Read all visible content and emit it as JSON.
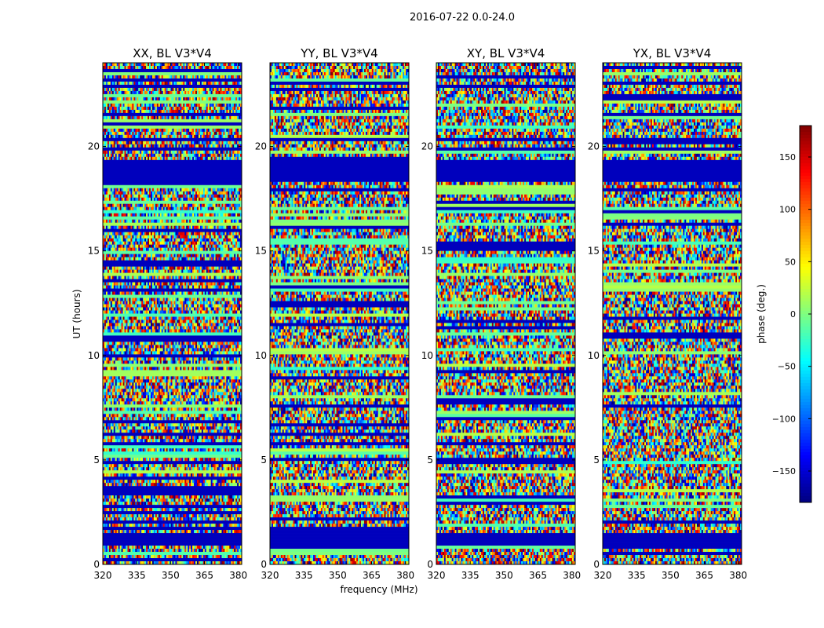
{
  "chart_data": {
    "type": "heatmap",
    "suptitle": "2016-07-22 0.0-24.0",
    "panels": [
      {
        "title": "XX, BL V3*V4",
        "pol": "XX"
      },
      {
        "title": "YY, BL V3*V4",
        "pol": "YY"
      },
      {
        "title": "XY, BL V3*V4",
        "pol": "XY"
      },
      {
        "title": "YX, BL V3*V4",
        "pol": "YX"
      }
    ],
    "xlabel": "frequency (MHz)",
    "ylabel": "UT (hours)",
    "xlim": [
      320,
      381.5
    ],
    "ylim": [
      0,
      24
    ],
    "xticks": [
      320,
      335,
      350,
      365,
      380
    ],
    "yticks": [
      0,
      5,
      10,
      15,
      20
    ],
    "colorbar": {
      "label": "phase (deg.)",
      "range": [
        -180,
        180
      ],
      "ticks": [
        150,
        100,
        50,
        0,
        -50,
        -100,
        -150
      ],
      "tick_labels": [
        "150",
        "100",
        "50",
        "0",
        "−50",
        "−100",
        "−150"
      ],
      "colormap": "jet"
    },
    "notes": "Phase vs frequency and UT for baseline V3*V4; mostly noisy phase, flagged rows around 18.4-19.4 h and 0.9-1.5 h show uniform dark blue."
  }
}
